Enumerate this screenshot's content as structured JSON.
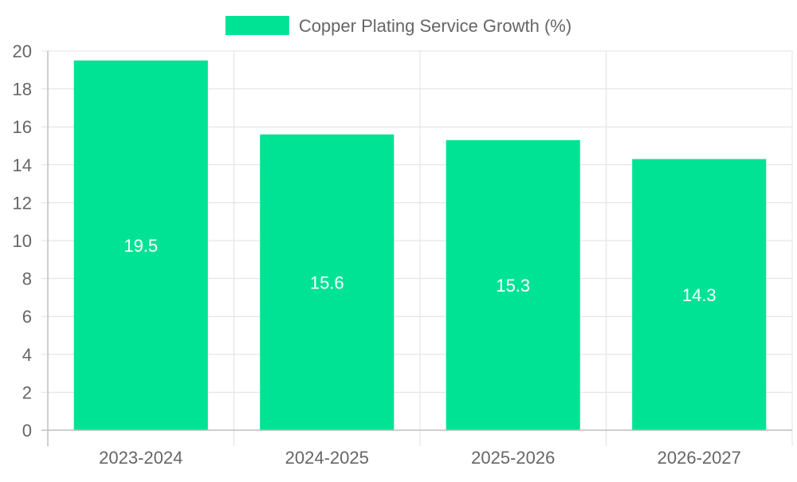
{
  "chart_data": {
    "type": "bar",
    "title": "",
    "xlabel": "",
    "ylabel": "",
    "categories": [
      "2023-2024",
      "2024-2025",
      "2025-2026",
      "2026-2027"
    ],
    "series": [
      {
        "name": "Copper Plating Service Growth (%)",
        "values": [
          19.5,
          15.6,
          15.3,
          14.3
        ],
        "color": "#00e394"
      }
    ],
    "ylim": [
      0,
      20
    ],
    "yticks": [
      "0",
      "2",
      "4",
      "6",
      "8",
      "10",
      "12",
      "14",
      "16",
      "18",
      "20"
    ],
    "data_labels": [
      "19.5",
      "15.6",
      "15.3",
      "14.3"
    ],
    "grid": true,
    "legend_position": "top-center"
  },
  "colors": {
    "bar": "#00e394",
    "grid": "#e0e0e0",
    "axis": "#bdbdbd",
    "tick_text": "#666666",
    "legend_text": "#666666",
    "data_label_text": "#ffffff"
  }
}
